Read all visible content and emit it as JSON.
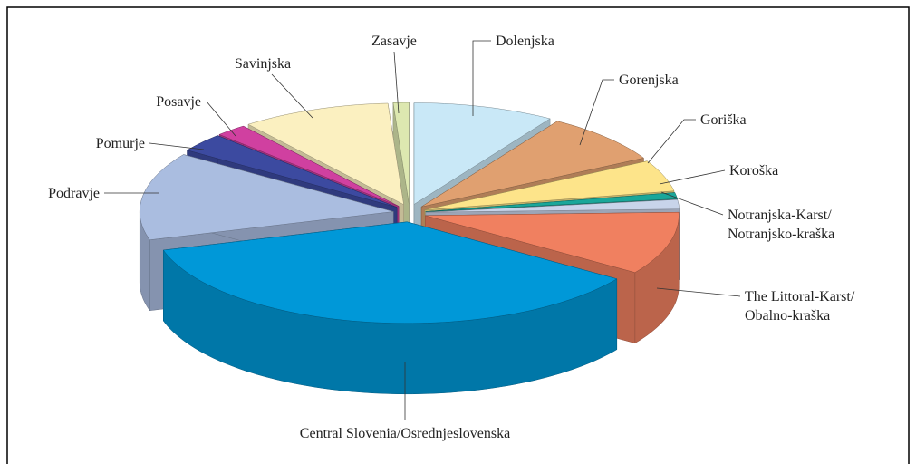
{
  "chart_data": {
    "type": "pie",
    "categories": [
      "Dolenjska",
      "Gorenjska",
      "Goriška",
      "Koroška",
      "Notranjska-Karst/ Notranjsko-kraška",
      "The Littoral-Karst/ Obalno-kraška",
      "Central Slovenia/Osrednjeslovenska",
      "Podravje",
      "Pomurje",
      "Posavje",
      "Savinjska",
      "Zasavje"
    ],
    "values": [
      9,
      8,
      5,
      1,
      1.5,
      10,
      36,
      14,
      3,
      2,
      9.5,
      1
    ],
    "colors": [
      "#c9e8f7",
      "#e0a070",
      "#fde48a",
      "#1aa79a",
      "#c8d4ea",
      "#f08060",
      "#0098d8",
      "#aabde0",
      "#3c4aa0",
      "#d040a0",
      "#fbf0c0",
      "#dde8b0"
    ]
  }
}
